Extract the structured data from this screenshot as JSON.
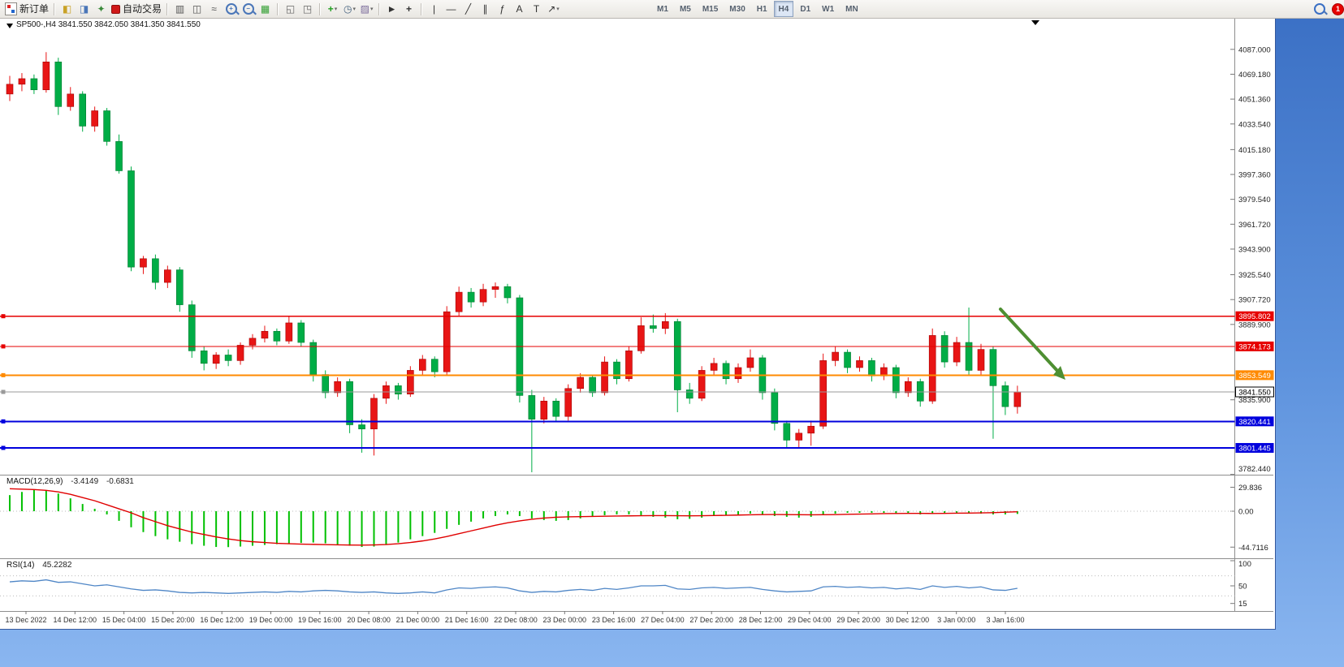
{
  "toolbar": {
    "new_order_label": "新订单",
    "autotrading_label": "自动交易",
    "timeframes": [
      "M1",
      "M5",
      "M15",
      "M30",
      "H1",
      "H4",
      "D1",
      "W1",
      "MN"
    ],
    "active_timeframe": "H4",
    "notification_count": "1"
  },
  "icons": {
    "new_order": "▤",
    "market_watch": "◧",
    "data_window": "◨",
    "navigator": "✦",
    "chart_bars": "▥",
    "chart_candles": "◫",
    "chart_line": "≈",
    "zoom_in": "+",
    "zoom_out": "−",
    "tile_windows": "▦",
    "cascade": "◱",
    "arrange": "◳",
    "indicators": "+",
    "periods": "◷",
    "templates": "▨",
    "cursor": "►",
    "crosshair": "+",
    "vline": "|",
    "hline": "—",
    "trendline": "╱",
    "channel": "∥",
    "fibonacci": "ƒ",
    "text_tool": "A",
    "label_tool": "T",
    "arrows_tool": "↗",
    "caret": "▾"
  },
  "chart": {
    "ohlc_line": "SP500-,H4 3841.550 3842.050 3841.350 3841.550",
    "price_axis": [
      "4087.000",
      "4069.180",
      "4051.360",
      "4033.540",
      "4015.180",
      "3997.360",
      "3979.540",
      "3961.720",
      "3943.900",
      "3925.540",
      "3907.720",
      "3889.900",
      "3835.900",
      "3782.440"
    ],
    "levels": [
      {
        "price": 3895.802,
        "label": "3895.802",
        "color": "#e60000",
        "width": 1.2
      },
      {
        "price": 3874.173,
        "label": "3874.173",
        "color": "#e60000",
        "width": 1.2
      },
      {
        "price": 3853.549,
        "label": "3853.549",
        "color": "#ff8a00",
        "width": 2
      },
      {
        "price": 3841.55,
        "label": "3841.550",
        "color": "#9a9a9a",
        "width": 1,
        "label_bg": "#ffffff",
        "label_fg": "#000000",
        "label_border": "#000000"
      },
      {
        "price": 3820.441,
        "label": "3820.441",
        "color": "#0000dd",
        "width": 2
      },
      {
        "price": 3801.445,
        "label": "3801.445",
        "color": "#0000dd",
        "width": 2
      }
    ],
    "time_labels": [
      "13 Dec 2022",
      "14 Dec 12:00",
      "15 Dec 04:00",
      "15 Dec 20:00",
      "16 Dec 12:00",
      "19 Dec 00:00",
      "19 Dec 16:00",
      "20 Dec 08:00",
      "21 Dec 00:00",
      "21 Dec 16:00",
      "22 Dec 08:00",
      "23 Dec 00:00",
      "23 Dec 16:00",
      "27 Dec 04:00",
      "27 Dec 20:00",
      "28 Dec 12:00",
      "29 Dec 04:00",
      "29 Dec 20:00",
      "30 Dec 12:00",
      "3 Jan 00:00",
      "3 Jan 16:00"
    ],
    "colors": {
      "bull": "#e81515",
      "bull_border": "#a50000",
      "bear": "#00ad46",
      "bear_border": "#007a30",
      "macd_hist": "#00c000",
      "macd_signal": "#e00000",
      "rsi_line": "#4f86c6",
      "arrow": "#4e8f32",
      "grid": "#8e8e8e"
    }
  },
  "macd": {
    "label": "MACD(12,26,9)",
    "value1": "-3.4149",
    "value2": "-0.6831",
    "axis": [
      "29.836",
      "0.00",
      "-44.7116"
    ]
  },
  "rsi": {
    "label": "RSI(14)",
    "value": "45.2282",
    "axis": [
      "100",
      "50",
      "15"
    ]
  },
  "chart_data": {
    "type": "candlestick",
    "symbol": "SP500-",
    "timeframe": "H4",
    "current_ohlc": {
      "open": 3841.55,
      "high": 3842.05,
      "low": 3841.35,
      "close": 3841.55
    },
    "price_range_visible": [
      3782.44,
      4087.0
    ],
    "candles": [
      [
        4055,
        4068,
        4050,
        4062
      ],
      [
        4062,
        4070,
        4057,
        4066
      ],
      [
        4066,
        4069,
        4055,
        4058
      ],
      [
        4058,
        4085,
        4056,
        4078
      ],
      [
        4078,
        4081,
        4040,
        4046
      ],
      [
        4046,
        4060,
        4043,
        4055
      ],
      [
        4055,
        4057,
        4028,
        4032
      ],
      [
        4032,
        4046,
        4028,
        4043
      ],
      [
        4043,
        4045,
        4018,
        4021
      ],
      [
        4021,
        4026,
        3998,
        4000
      ],
      [
        4000,
        4003,
        3928,
        3931
      ],
      [
        3931,
        3939,
        3926,
        3937
      ],
      [
        3937,
        3940,
        3915,
        3920
      ],
      [
        3920,
        3932,
        3916,
        3929
      ],
      [
        3929,
        3931,
        3899,
        3904
      ],
      [
        3904,
        3907,
        3866,
        3871
      ],
      [
        3871,
        3874,
        3857,
        3862
      ],
      [
        3862,
        3870,
        3858,
        3868
      ],
      [
        3868,
        3872,
        3860,
        3864
      ],
      [
        3864,
        3877,
        3861,
        3875
      ],
      [
        3875,
        3883,
        3872,
        3880
      ],
      [
        3880,
        3889,
        3877,
        3885
      ],
      [
        3885,
        3887,
        3875,
        3878
      ],
      [
        3878,
        3896,
        3876,
        3891
      ],
      [
        3891,
        3893,
        3874,
        3877
      ],
      [
        3877,
        3879,
        3849,
        3854
      ],
      [
        3854,
        3857,
        3837,
        3841
      ],
      [
        3841,
        3852,
        3838,
        3849
      ],
      [
        3849,
        3851,
        3812,
        3818
      ],
      [
        3818,
        3822,
        3798,
        3815
      ],
      [
        3815,
        3840,
        3796,
        3837
      ],
      [
        3837,
        3849,
        3833,
        3846
      ],
      [
        3846,
        3848,
        3836,
        3840
      ],
      [
        3840,
        3860,
        3838,
        3857
      ],
      [
        3857,
        3868,
        3854,
        3865
      ],
      [
        3865,
        3867,
        3852,
        3856
      ],
      [
        3856,
        3903,
        3853,
        3899
      ],
      [
        3899,
        3917,
        3896,
        3913
      ],
      [
        3913,
        3916,
        3902,
        3906
      ],
      [
        3906,
        3919,
        3903,
        3915
      ],
      [
        3915,
        3920,
        3909,
        3917
      ],
      [
        3917,
        3919,
        3905,
        3909
      ],
      [
        3909,
        3911,
        3834,
        3839
      ],
      [
        3839,
        3843,
        3784,
        3822
      ],
      [
        3822,
        3838,
        3819,
        3835
      ],
      [
        3835,
        3837,
        3820,
        3824
      ],
      [
        3824,
        3847,
        3821,
        3844
      ],
      [
        3844,
        3855,
        3841,
        3852
      ],
      [
        3852,
        3854,
        3838,
        3841
      ],
      [
        3841,
        3867,
        3839,
        3863
      ],
      [
        3863,
        3865,
        3847,
        3851
      ],
      [
        3851,
        3874,
        3849,
        3871
      ],
      [
        3871,
        3895,
        3869,
        3889
      ],
      [
        3889,
        3897,
        3884,
        3887
      ],
      [
        3887,
        3898,
        3883,
        3892
      ],
      [
        3892,
        3894,
        3827,
        3843
      ],
      [
        3843,
        3848,
        3833,
        3837
      ],
      [
        3837,
        3860,
        3835,
        3857
      ],
      [
        3857,
        3866,
        3853,
        3862
      ],
      [
        3862,
        3864,
        3847,
        3851
      ],
      [
        3851,
        3862,
        3848,
        3859
      ],
      [
        3859,
        3872,
        3856,
        3866
      ],
      [
        3866,
        3868,
        3836,
        3841
      ],
      [
        3841,
        3844,
        3814,
        3819
      ],
      [
        3819,
        3821,
        3802,
        3807
      ],
      [
        3807,
        3815,
        3801,
        3812
      ],
      [
        3812,
        3821,
        3803,
        3817
      ],
      [
        3817,
        3869,
        3815,
        3864
      ],
      [
        3864,
        3874,
        3860,
        3870
      ],
      [
        3870,
        3872,
        3855,
        3859
      ],
      [
        3859,
        3867,
        3856,
        3864
      ],
      [
        3864,
        3866,
        3849,
        3853
      ],
      [
        3853,
        3862,
        3850,
        3859
      ],
      [
        3859,
        3861,
        3837,
        3841
      ],
      [
        3841,
        3852,
        3838,
        3849
      ],
      [
        3849,
        3851,
        3831,
        3835
      ],
      [
        3835,
        3887,
        3833,
        3882
      ],
      [
        3882,
        3885,
        3859,
        3863
      ],
      [
        3863,
        3881,
        3860,
        3877
      ],
      [
        3877,
        3902,
        3853,
        3857
      ],
      [
        3857,
        3876,
        3854,
        3872
      ],
      [
        3872,
        3874,
        3808,
        3846
      ],
      [
        3846,
        3849,
        3825,
        3831
      ],
      [
        3831,
        3846,
        3826,
        3841.6
      ]
    ],
    "macd_histogram": [
      20,
      24,
      27,
      26,
      22,
      16,
      9,
      3,
      -4,
      -12,
      -20,
      -26,
      -31,
      -35,
      -38,
      -41,
      -43,
      -44.5,
      -44.7,
      -44,
      -43,
      -42,
      -41,
      -40,
      -39.5,
      -39,
      -40,
      -41.5,
      -43,
      -44.5,
      -44,
      -42,
      -39,
      -35,
      -31,
      -27,
      -22,
      -17,
      -13,
      -9,
      -6,
      -4,
      -6,
      -9,
      -11,
      -12,
      -11,
      -9,
      -7,
      -5,
      -4,
      -4,
      -5,
      -7,
      -8,
      -10,
      -9.5,
      -8,
      -6,
      -5,
      -4,
      -3,
      -4,
      -6,
      -7,
      -8,
      -7,
      -5,
      -3,
      -2,
      -2,
      -2,
      -2,
      -3,
      -3,
      -4,
      -3,
      -2,
      -2,
      -2,
      -3,
      -4,
      -4,
      -3.4
    ],
    "macd_signal": [
      28,
      27.5,
      27,
      26,
      24,
      21,
      17,
      13,
      8,
      3,
      -2,
      -8,
      -13,
      -18,
      -22,
      -26,
      -29,
      -32,
      -34.5,
      -36.5,
      -38,
      -39,
      -40,
      -40.5,
      -41,
      -41.3,
      -41.6,
      -41.9,
      -42.1,
      -42.2,
      -42,
      -41.5,
      -40.5,
      -39,
      -37,
      -34.5,
      -31.5,
      -28,
      -24.5,
      -21,
      -17.5,
      -14.5,
      -12,
      -10,
      -8.5,
      -7.5,
      -7,
      -6.8,
      -6.5,
      -6.2,
      -6,
      -5.8,
      -5.6,
      -5.5,
      -5.5,
      -5.6,
      -5.7,
      -5.6,
      -5.4,
      -5.1,
      -4.8,
      -4.5,
      -4.2,
      -4.1,
      -4.2,
      -4.4,
      -4.5,
      -4.4,
      -4.2,
      -3.9,
      -3.6,
      -3.3,
      -3,
      -2.8,
      -2.7,
      -2.7,
      -2.8,
      -2.7,
      -2.5,
      -2.3,
      -2.1,
      -1.8,
      -1.2,
      -0.68
    ],
    "rsi_series": [
      58,
      60,
      59,
      62,
      57,
      58,
      54,
      50,
      52,
      48,
      44,
      41,
      42,
      40,
      37,
      36,
      37,
      36,
      35,
      36,
      37,
      38,
      37,
      39,
      38,
      40,
      41,
      40,
      38,
      37,
      38,
      36,
      35,
      36,
      38,
      36,
      42,
      46,
      45,
      47,
      48,
      46,
      40,
      37,
      39,
      38,
      41,
      43,
      41,
      45,
      43,
      46,
      50,
      50,
      51,
      44,
      43,
      46,
      47,
      45,
      46,
      47,
      43,
      40,
      38,
      39,
      40,
      48,
      49,
      47,
      48,
      46,
      47,
      44,
      46,
      43,
      50,
      47,
      49,
      46,
      48,
      42,
      41,
      45.2
    ]
  }
}
